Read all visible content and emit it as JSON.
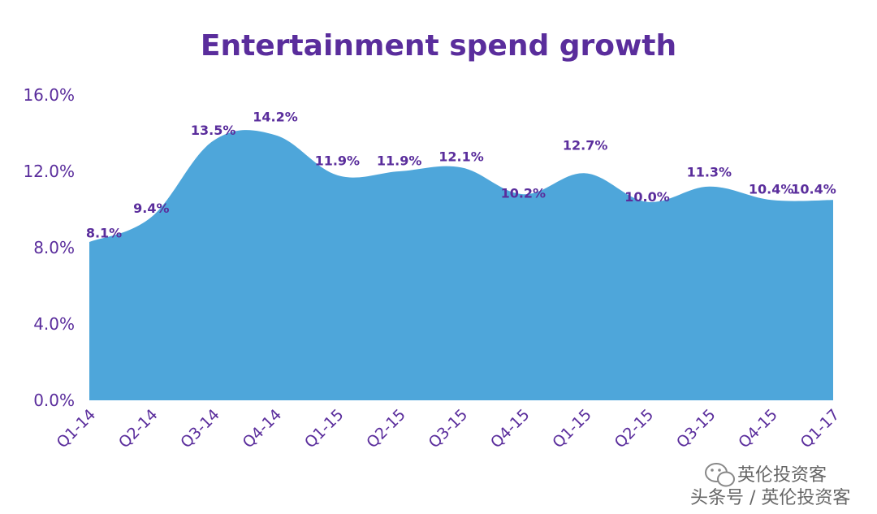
{
  "chart_data": {
    "type": "area",
    "title": "Entertainment spend growth",
    "xlabel": "",
    "ylabel": "",
    "ylim": [
      0,
      16
    ],
    "yticks": [
      "0.0%",
      "4.0%",
      "8.0%",
      "12.0%",
      "16.0%"
    ],
    "ytick_values": [
      0,
      4,
      8,
      12,
      16
    ],
    "grid": false,
    "categories": [
      "Q1-14",
      "Q2-14",
      "Q3-14",
      "Q4-14",
      "Q1-15",
      "Q2-15",
      "Q3-15",
      "Q4-15",
      "Q1-15",
      "Q2-15",
      "Q3-15",
      "Q4-15",
      "Q1-17"
    ],
    "values": [
      8.1,
      9.4,
      13.5,
      14.2,
      11.9,
      11.9,
      12.1,
      10.2,
      12.7,
      10.0,
      11.3,
      10.4,
      10.4
    ],
    "data_labels": [
      "8.1%",
      "9.4%",
      "13.5%",
      "14.2%",
      "11.9%",
      "11.9%",
      "12.1%",
      "10.2%",
      "12.7%",
      "10.0%",
      "11.3%",
      "10.4%",
      "10.4%"
    ],
    "area_values": [
      8.3,
      9.6,
      13.6,
      13.9,
      11.8,
      12.0,
      12.2,
      10.8,
      11.9,
      10.4,
      11.2,
      10.5,
      10.5
    ],
    "fill_color": "#4ea6da",
    "text_color": "#5a2d9c"
  },
  "watermark": {
    "line1": "英伦投资客",
    "line2": "头条号 / 英伦投资客",
    "icon": "wechat-icon"
  }
}
